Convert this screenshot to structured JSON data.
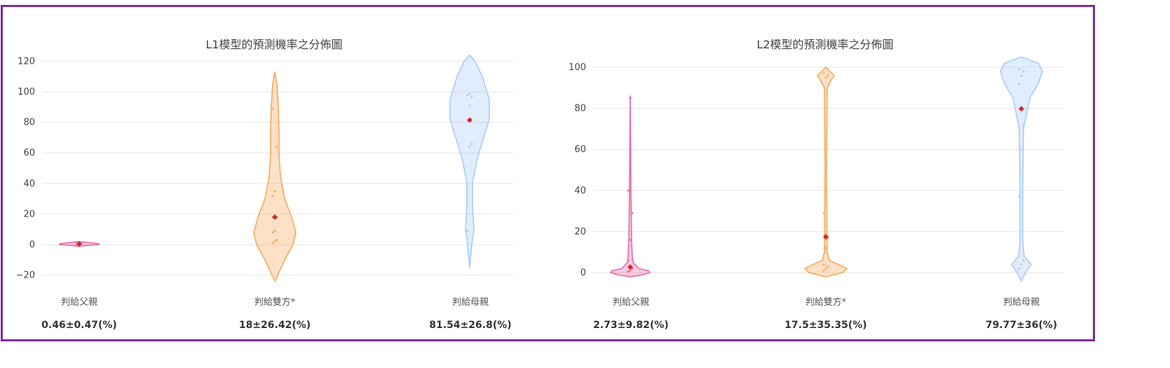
{
  "chart_data": [
    {
      "type": "violin",
      "title": "L1模型的預測機率之分佈圖",
      "categories": [
        "判給父親",
        "判給雙方*",
        "判給母親"
      ],
      "ylim": [
        -25,
        125
      ],
      "yticks": [
        -20,
        0,
        20,
        40,
        60,
        80,
        100,
        120
      ],
      "grid": true,
      "series": [
        {
          "category": "判給父親",
          "color": "#e86aa6",
          "mean": 0.46,
          "sd": 0.47,
          "points": [
            0.1,
            0.3,
            0.5,
            0.7,
            0.9
          ],
          "range": [
            -1,
            2
          ]
        },
        {
          "category": "判給雙方*",
          "color": "#f5a95b",
          "mean": 18,
          "sd": 26.42,
          "points": [
            1,
            2,
            3,
            8,
            9,
            18,
            32,
            35,
            64,
            89
          ],
          "range": [
            -24,
            113
          ]
        },
        {
          "category": "判給母親",
          "color": "#a8ccf5",
          "mean": 81.54,
          "sd": 26.8,
          "points": [
            9,
            64,
            66,
            81,
            91,
            97,
            98,
            99
          ],
          "range": [
            -15,
            124
          ]
        }
      ],
      "stats": [
        "0.46±0.47(%)",
        "18±26.42(%)",
        "81.54±26.8(%)"
      ]
    },
    {
      "type": "violin",
      "title": "L2模型的預測機率之分佈圖",
      "categories": [
        "判給父親",
        "判給雙方*",
        "判給母親"
      ],
      "ylim": [
        -5,
        105
      ],
      "yticks": [
        0,
        20,
        40,
        60,
        80,
        100
      ],
      "grid": true,
      "series": [
        {
          "category": "判給父親",
          "color": "#e86aa6",
          "mean": 2.73,
          "sd": 9.82,
          "points": [
            0.5,
            1,
            2,
            6,
            16,
            29,
            40,
            85
          ],
          "range": [
            -1,
            86
          ]
        },
        {
          "category": "判給雙方*",
          "color": "#f5a95b",
          "mean": 17.5,
          "sd": 35.35,
          "points": [
            1,
            2,
            3,
            4,
            12,
            17,
            29,
            95,
            96,
            97
          ],
          "range": [
            -2,
            100
          ]
        },
        {
          "category": "判給母親",
          "color": "#a8ccf5",
          "mean": 79.77,
          "sd": 36,
          "points": [
            2,
            4,
            6,
            37,
            60,
            72,
            92,
            96,
            98,
            99
          ],
          "range": [
            -4,
            105
          ]
        }
      ],
      "stats": [
        "2.73±9.82(%)",
        "17.5±35.35(%)",
        "79.77±36(%)"
      ]
    }
  ]
}
